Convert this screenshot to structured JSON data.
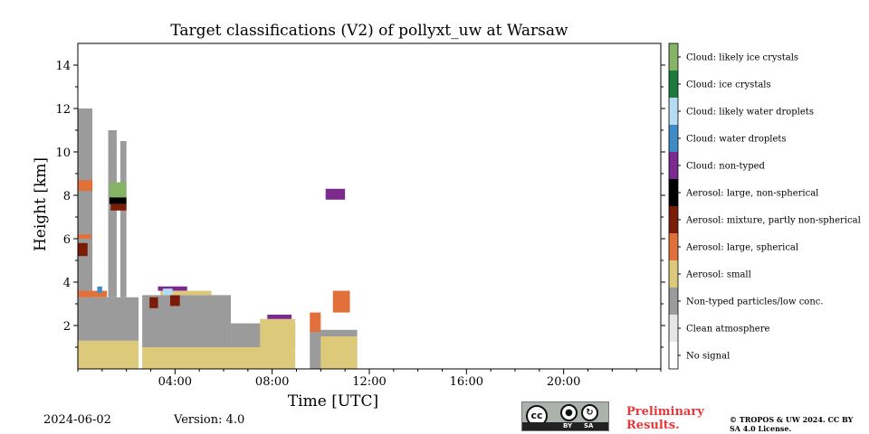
{
  "chart_data": {
    "type": "heatmap",
    "title": "Target classifications (V2) of pollyxt_uw at Warsaw",
    "xlabel": "Time [UTC]",
    "ylabel": "Height [km]",
    "xlim_hours": [
      0,
      24
    ],
    "ylim_km": [
      0,
      15
    ],
    "x_ticks": [
      "04:00",
      "08:00",
      "12:00",
      "16:00",
      "20:00"
    ],
    "x_tick_hours": [
      4,
      8,
      12,
      16,
      20
    ],
    "y_ticks": [
      2,
      4,
      6,
      8,
      10,
      12,
      14
    ],
    "grid": false,
    "colorbar": [
      {
        "label": "Cloud: likely ice crystals",
        "color": "#86b466"
      },
      {
        "label": "Cloud: ice crystals",
        "color": "#1c7a3e"
      },
      {
        "label": "Cloud: likely water droplets",
        "color": "#b5dcf3"
      },
      {
        "label": "Cloud: water droplets",
        "color": "#3f8bc8"
      },
      {
        "label": "Cloud: non-typed",
        "color": "#7b2a8e"
      },
      {
        "label": "Aerosol: large, non-spherical",
        "color": "#000000"
      },
      {
        "label": "Aerosol: mixture, partly non-spherical",
        "color": "#7a1c08"
      },
      {
        "label": "Aerosol: large, spherical",
        "color": "#e2703a"
      },
      {
        "label": "Aerosol: small",
        "color": "#dcc97a"
      },
      {
        "label": "Non-typed particles/low conc.",
        "color": "#9b9b9b"
      },
      {
        "label": "Clean atmosphere",
        "color": "#e6e6e6"
      },
      {
        "label": "No signal",
        "color": "#ffffff"
      }
    ],
    "regions": [
      {
        "class": "Aerosol: small",
        "x": [
          0.0,
          2.5
        ],
        "y": [
          0.0,
          1.3
        ]
      },
      {
        "class": "Non-typed particles/low conc.",
        "x": [
          0.0,
          2.5
        ],
        "y": [
          1.3,
          3.3
        ]
      },
      {
        "class": "Aerosol: small",
        "x": [
          2.65,
          8.95
        ],
        "y": [
          0.0,
          1.0
        ]
      },
      {
        "class": "Non-typed particles/low conc.",
        "x": [
          2.65,
          6.3
        ],
        "y": [
          1.0,
          3.4
        ]
      },
      {
        "class": "Non-typed particles/low conc.",
        "x": [
          6.3,
          8.95
        ],
        "y": [
          1.0,
          2.1
        ]
      },
      {
        "class": "Aerosol: small",
        "x": [
          7.5,
          8.95
        ],
        "y": [
          1.0,
          2.3
        ]
      },
      {
        "class": "Non-typed particles/low conc.",
        "x": [
          9.55,
          11.5
        ],
        "y": [
          0.0,
          1.8
        ]
      },
      {
        "class": "Aerosol: small",
        "x": [
          10.0,
          11.5
        ],
        "y": [
          0.0,
          1.5
        ]
      },
      {
        "class": "Non-typed particles/low conc.",
        "x": [
          0.0,
          0.6
        ],
        "y": [
          3.3,
          12.0
        ]
      },
      {
        "class": "Non-typed particles/low conc.",
        "x": [
          1.25,
          1.6
        ],
        "y": [
          3.3,
          11.0
        ]
      },
      {
        "class": "Non-typed particles/low conc.",
        "x": [
          1.75,
          2.0
        ],
        "y": [
          3.3,
          10.5
        ]
      },
      {
        "class": "Aerosol: mixture, partly non-spherical",
        "x": [
          0.0,
          0.4
        ],
        "y": [
          5.2,
          5.8
        ]
      },
      {
        "class": "Aerosol: large, spherical",
        "x": [
          0.0,
          0.55
        ],
        "y": [
          6.0,
          6.2
        ]
      },
      {
        "class": "Aerosol: large, spherical",
        "x": [
          0.0,
          0.6
        ],
        "y": [
          8.2,
          8.7
        ]
      },
      {
        "class": "Cloud: likely ice crystals",
        "x": [
          1.3,
          2.0
        ],
        "y": [
          7.9,
          8.6
        ]
      },
      {
        "class": "Aerosol: large, non-spherical",
        "x": [
          1.3,
          2.0
        ],
        "y": [
          7.6,
          7.9
        ]
      },
      {
        "class": "Aerosol: mixture, partly non-spherical",
        "x": [
          1.35,
          2.0
        ],
        "y": [
          7.3,
          7.6
        ]
      },
      {
        "class": "Aerosol: large, spherical",
        "x": [
          0.0,
          1.2
        ],
        "y": [
          3.3,
          3.6
        ]
      },
      {
        "class": "Cloud: water droplets",
        "x": [
          0.8,
          1.0
        ],
        "y": [
          3.5,
          3.8
        ]
      },
      {
        "class": "Aerosol: mixture, partly non-spherical",
        "x": [
          2.95,
          3.3
        ],
        "y": [
          2.8,
          3.3
        ]
      },
      {
        "class": "Aerosol: mixture, partly non-spherical",
        "x": [
          3.8,
          4.2
        ],
        "y": [
          2.9,
          3.4
        ]
      },
      {
        "class": "Cloud: non-typed",
        "x": [
          3.3,
          4.5
        ],
        "y": [
          3.6,
          3.8
        ]
      },
      {
        "class": "Aerosol: small",
        "x": [
          3.4,
          5.5
        ],
        "y": [
          3.4,
          3.6
        ]
      },
      {
        "class": "Cloud: likely water droplets",
        "x": [
          3.5,
          3.9
        ],
        "y": [
          3.4,
          3.7
        ]
      },
      {
        "class": "Aerosol: large, spherical",
        "x": [
          9.55,
          10.0
        ],
        "y": [
          1.7,
          2.6
        ]
      },
      {
        "class": "Aerosol: large, spherical",
        "x": [
          10.5,
          11.2
        ],
        "y": [
          2.6,
          3.6
        ]
      },
      {
        "class": "Cloud: non-typed",
        "x": [
          10.2,
          11.0
        ],
        "y": [
          7.8,
          8.3
        ]
      },
      {
        "class": "Cloud: non-typed",
        "x": [
          7.8,
          8.8
        ],
        "y": [
          2.3,
          2.5
        ]
      }
    ]
  },
  "footer": {
    "date": "2024-06-02",
    "version": "Version: 4.0",
    "preliminary": "Preliminary Results.",
    "copyright": "© TROPOS & UW 2024. CC BY SA 4.0 License.",
    "license_badge": {
      "by": "BY",
      "sa": "SA",
      "cc": "cc"
    }
  }
}
